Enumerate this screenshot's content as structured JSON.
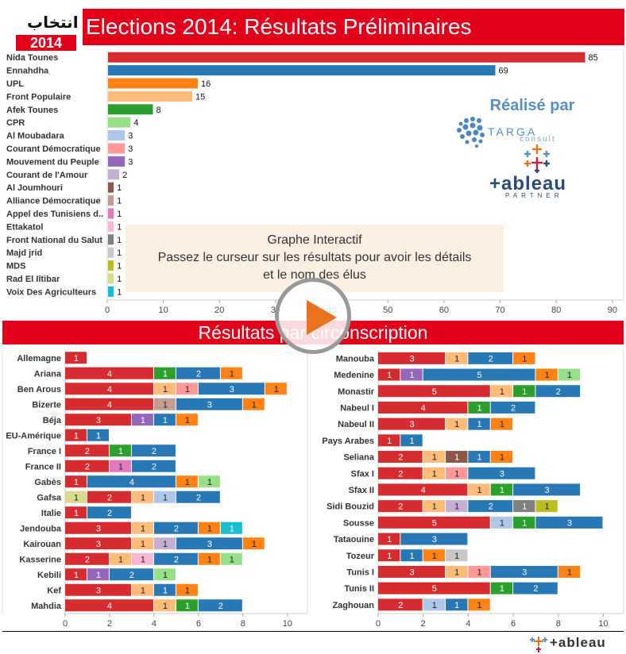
{
  "header": {
    "title": "Elections 2014: Résultats Préliminaires",
    "logo_arabic": "انتخاب",
    "logo_year": "2014"
  },
  "section2": {
    "title": "Résultats par circonscription"
  },
  "tooltip_box": {
    "line1": "Graphe Interactif",
    "line2": "Passez le curseur sur les résultats pour avoir les détails",
    "line3": "et le nom des élus"
  },
  "promo": {
    "realise": "Réalisé par",
    "targa": "TARGA",
    "consult": "consult",
    "tableau": "+ableau",
    "partner": "PARTNER"
  },
  "footer": {
    "logo": "+ableau"
  },
  "palette": {
    "Nida Tounes": "#d62b2f",
    "Ennahdha": "#2778b4",
    "UPL": "#ff8214",
    "Front Populaire": "#ffbb78",
    "Afek Tounes": "#2ba02c",
    "CPR": "#98df8a",
    "Al Moubadara": "#aec7e8",
    "Courant Démocratique": "#ff9896",
    "Mouvement du Peuple": "#9467bd",
    "Courant de l'Amour": "#c5b0d5",
    "Al Joumhouri": "#8c564b",
    "Alliance Démocratique": "#c49c94",
    "Appel des Tunisiens d..": "#e377c2",
    "Ettakatol": "#f7b6d2",
    "Front National du Salut": "#7f7f7f",
    "Majd jrid": "#c7c7c7",
    "MDS": "#bcbd22",
    "Rad El Iîtibar": "#dbdb8d",
    "Voix Des Agriculteurs": "#17becf"
  },
  "chart_data": [
    {
      "type": "bar",
      "orientation": "horizontal",
      "categories": [
        "Nida Tounes",
        "Ennahdha",
        "UPL",
        "Front Populaire",
        "Afek Tounes",
        "CPR",
        "Al Moubadara",
        "Courant Démocratique",
        "Mouvement  du Peuple",
        "Courant de l'Amour",
        "Al Joumhouri",
        "Alliance Démocratique",
        "Appel des Tunisiens d..",
        "Ettakatol",
        "Front National du Salut",
        "Majd jrid",
        "MDS",
        "Rad El Iîtibar",
        "Voix Des Agriculteurs"
      ],
      "values": [
        85,
        69,
        16,
        15,
        8,
        4,
        3,
        3,
        3,
        2,
        1,
        1,
        1,
        1,
        1,
        1,
        1,
        1,
        1
      ],
      "xticks": [
        "0",
        "10",
        "20",
        "30",
        "40",
        "50",
        "60",
        "70",
        "80",
        "90"
      ],
      "xlim": [
        0,
        92
      ]
    },
    {
      "type": "bar",
      "orientation": "horizontal",
      "stacked": true,
      "xticks": [
        "0",
        "2",
        "4",
        "6",
        "8",
        "10"
      ],
      "xlim": [
        0,
        10.9
      ],
      "rows": [
        {
          "name": "Allemagne",
          "segments": [
            [
              "Nida Tounes",
              1
            ]
          ]
        },
        {
          "name": "Ariana",
          "segments": [
            [
              "Nida Tounes",
              4
            ],
            [
              "Afek Tounes",
              1
            ],
            [
              "Ennahdha",
              2
            ],
            [
              "UPL",
              1
            ]
          ]
        },
        {
          "name": "Ben Arous",
          "segments": [
            [
              "Nida Tounes",
              4
            ],
            [
              "Front Populaire",
              1
            ],
            [
              "Courant Démocratique",
              1
            ],
            [
              "Ennahdha",
              3
            ],
            [
              "UPL",
              1
            ]
          ]
        },
        {
          "name": "Bizerte",
          "segments": [
            [
              "Nida Tounes",
              4
            ],
            [
              "Alliance Démocratique",
              1
            ],
            [
              "Ennahdha",
              3
            ],
            [
              "UPL",
              1
            ]
          ]
        },
        {
          "name": "Béja",
          "segments": [
            [
              "Nida Tounes",
              3
            ],
            [
              "Mouvement du Peuple",
              1
            ],
            [
              "Ennahdha",
              1
            ],
            [
              "UPL",
              1
            ]
          ]
        },
        {
          "name": "EU-Amérique",
          "segments": [
            [
              "Nida Tounes",
              1
            ],
            [
              "Ennahdha",
              1
            ]
          ]
        },
        {
          "name": "France I",
          "segments": [
            [
              "Nida Tounes",
              2
            ],
            [
              "Afek Tounes",
              1
            ],
            [
              "Ennahdha",
              2
            ]
          ]
        },
        {
          "name": "France II",
          "segments": [
            [
              "Nida Tounes",
              2
            ],
            [
              "Appel des Tunisiens d..",
              1
            ],
            [
              "Ennahdha",
              2
            ]
          ]
        },
        {
          "name": "Gabès",
          "segments": [
            [
              "Nida Tounes",
              1
            ],
            [
              "Ennahdha",
              4
            ],
            [
              "UPL",
              1
            ],
            [
              "CPR",
              1
            ]
          ]
        },
        {
          "name": "Gafsa",
          "segments": [
            [
              "Rad El Iîtibar",
              1
            ],
            [
              "Nida Tounes",
              2
            ],
            [
              "Front Populaire",
              1
            ],
            [
              "Al Moubadara",
              1
            ],
            [
              "Ennahdha",
              2
            ]
          ]
        },
        {
          "name": "Italie",
          "segments": [
            [
              "Nida Tounes",
              1
            ],
            [
              "Ennahdha",
              2
            ]
          ]
        },
        {
          "name": "Jendouba",
          "segments": [
            [
              "Nida Tounes",
              3
            ],
            [
              "Front Populaire",
              1
            ],
            [
              "Ennahdha",
              2
            ],
            [
              "UPL",
              1
            ],
            [
              "Voix Des Agriculteurs",
              1
            ]
          ]
        },
        {
          "name": "Kairouan",
          "segments": [
            [
              "Nida Tounes",
              3
            ],
            [
              "Front Populaire",
              1
            ],
            [
              "Courant de l'Amour",
              1
            ],
            [
              "Ennahdha",
              3
            ],
            [
              "UPL",
              1
            ]
          ]
        },
        {
          "name": "Kasserine",
          "segments": [
            [
              "Nida Tounes",
              2
            ],
            [
              "Front Populaire",
              1
            ],
            [
              "Ettakatol",
              1
            ],
            [
              "Ennahdha",
              2
            ],
            [
              "UPL",
              1
            ],
            [
              "CPR",
              1
            ]
          ]
        },
        {
          "name": "Kebili",
          "segments": [
            [
              "Nida Tounes",
              1
            ],
            [
              "Mouvement du Peuple",
              1
            ],
            [
              "Ennahdha",
              2
            ],
            [
              "CPR",
              1
            ]
          ]
        },
        {
          "name": "Kef",
          "segments": [
            [
              "Nida Tounes",
              3
            ],
            [
              "Front Populaire",
              1
            ],
            [
              "Ennahdha",
              1
            ],
            [
              "UPL",
              1
            ]
          ]
        },
        {
          "name": "Mahdia",
          "segments": [
            [
              "Nida Tounes",
              4
            ],
            [
              "Front Populaire",
              1
            ],
            [
              "Afek Tounes",
              1
            ],
            [
              "Ennahdha",
              2
            ]
          ]
        }
      ]
    },
    {
      "type": "bar",
      "orientation": "horizontal",
      "stacked": true,
      "xticks": [
        "0",
        "2",
        "4",
        "6",
        "8",
        "10"
      ],
      "xlim": [
        0,
        10.9
      ],
      "rows": [
        {
          "name": "Manouba",
          "segments": [
            [
              "Nida Tounes",
              3
            ],
            [
              "Front Populaire",
              1
            ],
            [
              "Ennahdha",
              2
            ],
            [
              "UPL",
              1
            ]
          ]
        },
        {
          "name": "Medenine",
          "segments": [
            [
              "Nida Tounes",
              1
            ],
            [
              "Mouvement du Peuple",
              1
            ],
            [
              "Ennahdha",
              5
            ],
            [
              "UPL",
              1
            ],
            [
              "CPR",
              1
            ]
          ]
        },
        {
          "name": "Monastir",
          "segments": [
            [
              "Nida Tounes",
              5
            ],
            [
              "Front Populaire",
              1
            ],
            [
              "Afek Tounes",
              1
            ],
            [
              "Ennahdha",
              2
            ]
          ]
        },
        {
          "name": "Nabeul I",
          "segments": [
            [
              "Nida Tounes",
              4
            ],
            [
              "Afek Tounes",
              1
            ],
            [
              "Ennahdha",
              2
            ]
          ]
        },
        {
          "name": "Nabeul II",
          "segments": [
            [
              "Nida Tounes",
              3
            ],
            [
              "Front Populaire",
              1
            ],
            [
              "Ennahdha",
              1
            ],
            [
              "UPL",
              1
            ]
          ]
        },
        {
          "name": "Pays Arabes",
          "segments": [
            [
              "Nida Tounes",
              1
            ],
            [
              "Ennahdha",
              1
            ]
          ]
        },
        {
          "name": "Seliana",
          "segments": [
            [
              "Nida Tounes",
              2
            ],
            [
              "Front Populaire",
              1
            ],
            [
              "Al Joumhouri",
              1
            ],
            [
              "Ennahdha",
              1
            ],
            [
              "UPL",
              1
            ]
          ]
        },
        {
          "name": "Sfax I",
          "segments": [
            [
              "Nida Tounes",
              2
            ],
            [
              "Front Populaire",
              1
            ],
            [
              "Courant Démocratique",
              1
            ],
            [
              "Ennahdha",
              3
            ]
          ]
        },
        {
          "name": "Sfax II",
          "segments": [
            [
              "Nida Tounes",
              4
            ],
            [
              "Front Populaire",
              1
            ],
            [
              "Afek Tounes",
              1
            ],
            [
              "Ennahdha",
              3
            ]
          ]
        },
        {
          "name": "Sidi Bouzid",
          "segments": [
            [
              "Nida Tounes",
              2
            ],
            [
              "Front Populaire",
              1
            ],
            [
              "Courant de l'Amour",
              1
            ],
            [
              "Ennahdha",
              2
            ],
            [
              "Front National du Salut",
              1
            ],
            [
              "MDS",
              1
            ]
          ]
        },
        {
          "name": "Sousse",
          "segments": [
            [
              "Nida Tounes",
              5
            ],
            [
              "Al Moubadara",
              1
            ],
            [
              "Afek Tounes",
              1
            ],
            [
              "Ennahdha",
              3
            ]
          ]
        },
        {
          "name": "Tataouine",
          "segments": [
            [
              "Nida Tounes",
              1
            ],
            [
              "Ennahdha",
              3
            ]
          ]
        },
        {
          "name": "Tozeur",
          "segments": [
            [
              "Nida Tounes",
              1
            ],
            [
              "Ennahdha",
              1
            ],
            [
              "UPL",
              1
            ],
            [
              "Majd jrid",
              1
            ]
          ]
        },
        {
          "name": "Tunis I",
          "segments": [
            [
              "Nida Tounes",
              3
            ],
            [
              "Front Populaire",
              1
            ],
            [
              "Courant Démocratique",
              1
            ],
            [
              "Ennahdha",
              3
            ],
            [
              "UPL",
              1
            ]
          ]
        },
        {
          "name": "Tunis II",
          "segments": [
            [
              "Nida Tounes",
              5
            ],
            [
              "Afek Tounes",
              1
            ],
            [
              "Ennahdha",
              2
            ]
          ]
        },
        {
          "name": "Zaghouan",
          "segments": [
            [
              "Nida Tounes",
              2
            ],
            [
              "Al Moubadara",
              1
            ],
            [
              "Ennahdha",
              1
            ],
            [
              "UPL",
              1
            ]
          ]
        }
      ]
    }
  ]
}
